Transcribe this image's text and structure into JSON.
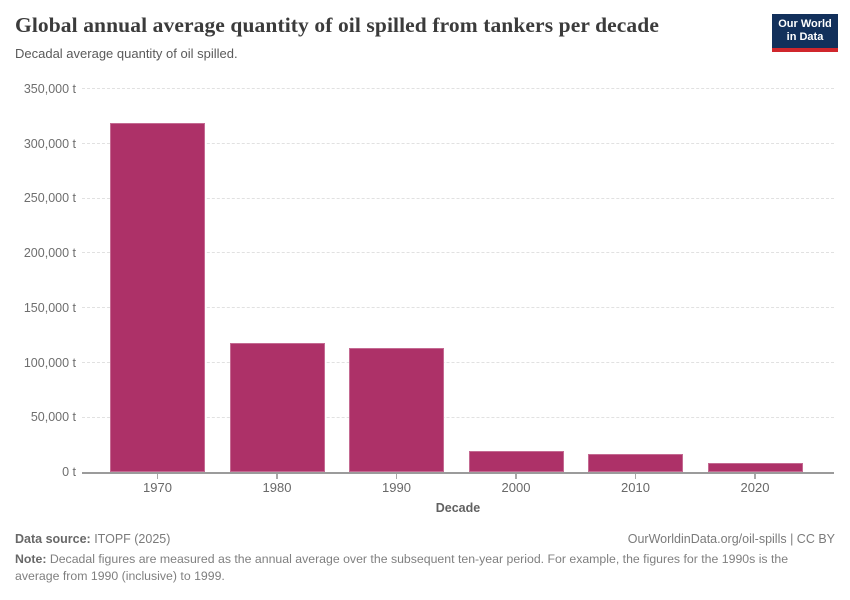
{
  "header": {
    "title": "Global annual average quantity of oil spilled from tankers per decade",
    "subtitle": "Decadal average quantity of oil spilled.",
    "logo": {
      "line1": "Our World",
      "line2": "in Data",
      "bg": "#12305b",
      "accent": "#d0262c"
    }
  },
  "chart_data": {
    "type": "bar",
    "title": "Global annual average quantity of oil spilled from tankers per decade",
    "subtitle": "Decadal average quantity of oil spilled.",
    "categories": [
      "1970",
      "1980",
      "1990",
      "2000",
      "2010",
      "2020"
    ],
    "values": [
      319000,
      117800,
      113000,
      19600,
      16400,
      7900
    ],
    "unit": "t",
    "xlabel": "Decade",
    "ylabel": "",
    "ylim": [
      0,
      350000
    ],
    "ytick_step": 50000,
    "ytick_labels": [
      "0 t",
      "50,000 t",
      "100,000 t",
      "150,000 t",
      "200,000 t",
      "250,000 t",
      "300,000 t",
      "350,000 t"
    ],
    "grid": "horizontal dashed gridlines, legend none",
    "bar_color": "#ad3168"
  },
  "footer": {
    "source_label": "Data source:",
    "source_value": " ITOPF (2025)",
    "link": "OurWorldinData.org/oil-spills | CC BY",
    "note_label": "Note:",
    "note_value": " Decadal figures are measured as the annual average over the subsequent ten-year period. For example, the figures for the 1990s is the average from 1990 (inclusive) to 1999."
  }
}
